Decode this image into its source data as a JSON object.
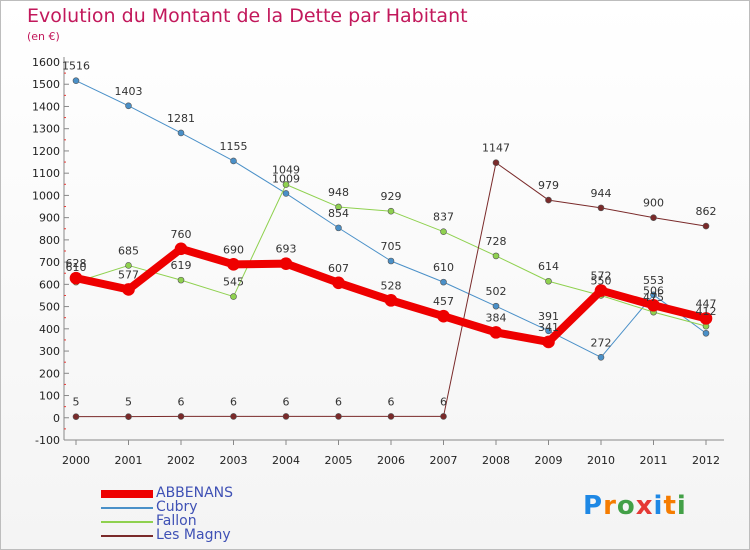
{
  "header": {
    "title": "Evolution du Montant de la Dette par Habitant",
    "subtitle": "(en €)"
  },
  "logo": {
    "text": "Proxiti",
    "letters": [
      "P",
      "r",
      "o",
      "x",
      "i",
      "t",
      "i"
    ],
    "colors": [
      "#1e88e5",
      "#f57c00",
      "#43a047",
      "#e53935",
      "#1e88e5",
      "#f57c00",
      "#43a047"
    ]
  },
  "chart_data": {
    "type": "line",
    "x": [
      "2000",
      "2001",
      "2002",
      "2003",
      "2004",
      "2005",
      "2006",
      "2007",
      "2008",
      "2009",
      "2010",
      "2011",
      "2012"
    ],
    "ylim": [
      -100,
      1600
    ],
    "yticks": [
      -100,
      0,
      100,
      200,
      300,
      400,
      500,
      600,
      700,
      800,
      900,
      1000,
      1100,
      1200,
      1300,
      1400,
      1500,
      1600
    ],
    "grid": false,
    "legend_position": "bottom-left",
    "series": [
      {
        "name": "Cubry",
        "color": "#4a90c8",
        "width": 1,
        "values": [
          1516,
          1403,
          1281,
          1155,
          1009,
          854,
          705,
          610,
          502,
          391,
          272,
          553,
          380
        ],
        "labels": [
          "1516",
          "1403",
          "1281",
          "1155",
          "1009",
          "854",
          "705",
          "610",
          "502",
          "391",
          "272",
          "553",
          ""
        ]
      },
      {
        "name": "Fallon",
        "color": "#8fd14f",
        "width": 1,
        "values": [
          610,
          685,
          619,
          545,
          1049,
          948,
          929,
          837,
          728,
          614,
          550,
          475,
          412
        ],
        "labels": [
          "610",
          "685",
          "619",
          "545",
          "1049",
          "948",
          "929",
          "837",
          "728",
          "614",
          "550",
          "475",
          "412"
        ]
      },
      {
        "name": "Les Magny",
        "color": "#7a2a2a",
        "width": 1,
        "values": [
          5,
          5,
          6,
          6,
          6,
          6,
          6,
          6,
          1147,
          979,
          944,
          900,
          862
        ],
        "labels": [
          "5",
          "5",
          "6",
          "6",
          "6",
          "6",
          "6",
          "6",
          "1147",
          "979",
          "944",
          "900",
          "862"
        ]
      },
      {
        "name": "ABBENANS",
        "color": "#ee0000",
        "width": 8,
        "values": [
          628,
          577,
          760,
          690,
          693,
          607,
          528,
          457,
          384,
          341,
          572,
          506,
          447
        ],
        "labels": [
          "628",
          "577",
          "760",
          "690",
          "693",
          "607",
          "528",
          "457",
          "384",
          "341",
          "572",
          "506",
          "447"
        ]
      }
    ]
  },
  "legend": [
    {
      "name": "ABBENANS",
      "color": "#ee0000",
      "thickness": 8
    },
    {
      "name": "Cubry",
      "color": "#4a90c8",
      "thickness": 2
    },
    {
      "name": "Fallon",
      "color": "#8fd14f",
      "thickness": 2
    },
    {
      "name": "Les Magny",
      "color": "#7a2a2a",
      "thickness": 2
    }
  ]
}
